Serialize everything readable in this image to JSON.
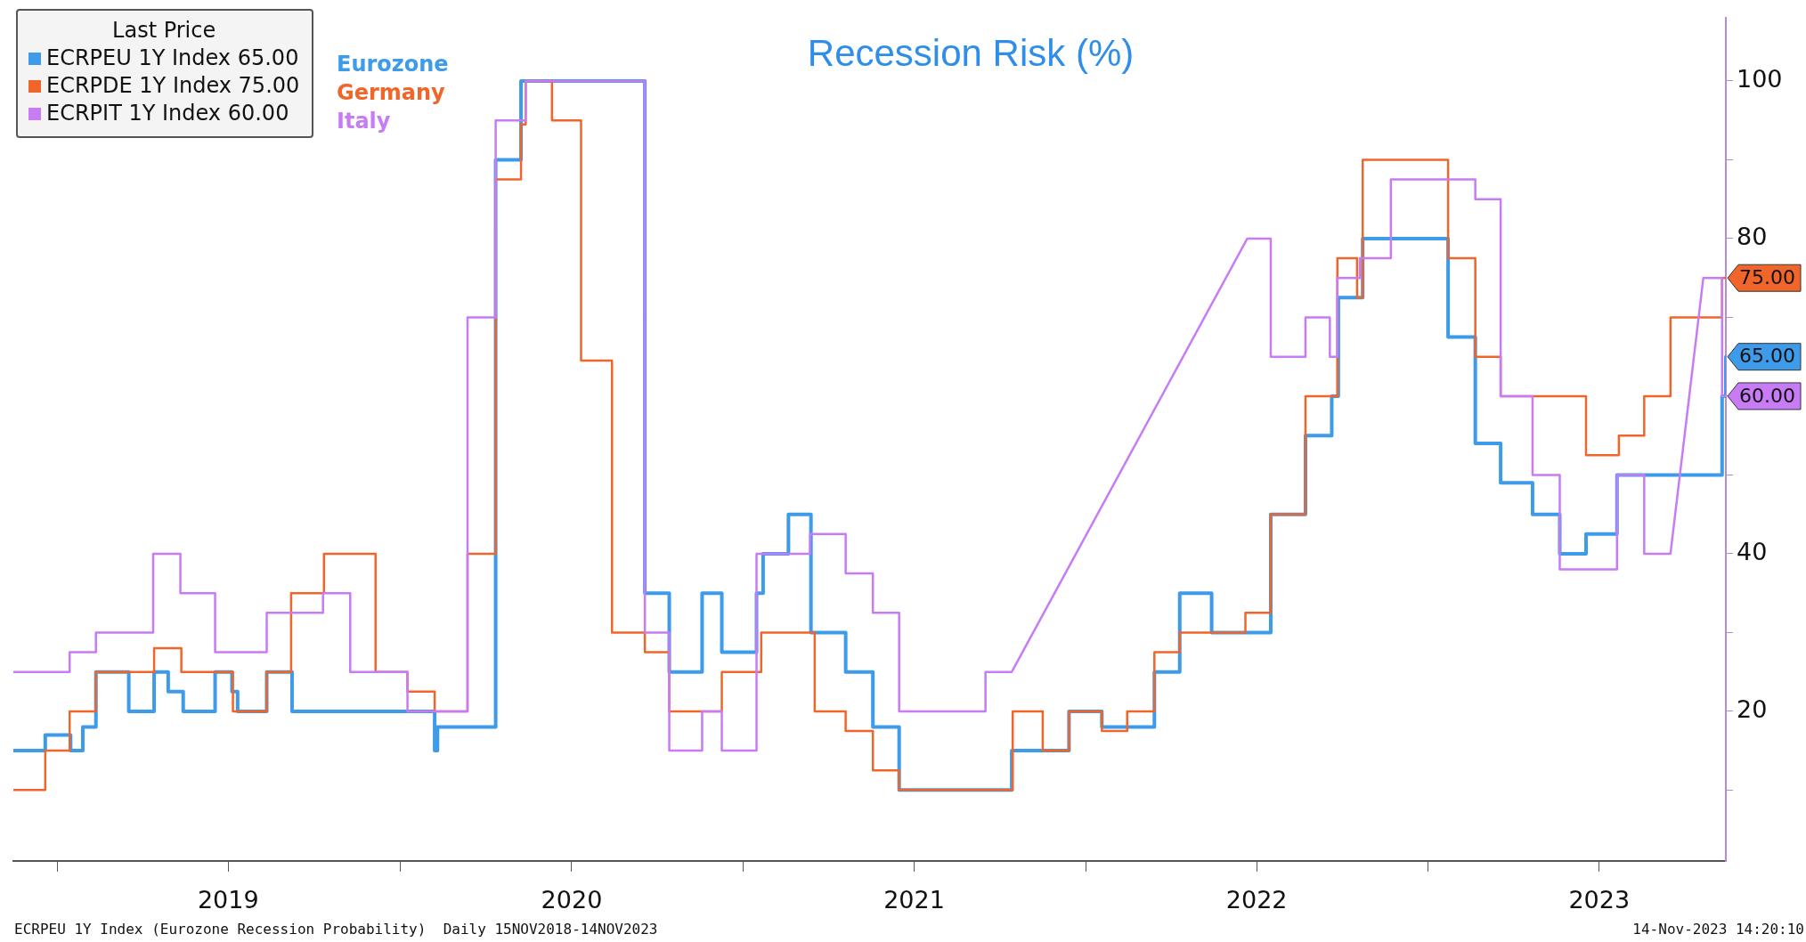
{
  "chart_data": {
    "type": "step",
    "title": "Recession Risk (%)",
    "legend_title": "Last Price",
    "legend": "top left",
    "grid": false,
    "marker": "none",
    "line_style": "solid",
    "xlim": [
      "2018-11-15",
      "2023-11-14"
    ],
    "xticks": [
      {
        "value": "2019-01-01",
        "label": null
      },
      {
        "value": "2019-07-02",
        "label": "2019"
      },
      {
        "value": "2020-01-01",
        "label": null
      },
      {
        "value": "2020-07-02",
        "label": "2020"
      },
      {
        "value": "2021-01-01",
        "label": null
      },
      {
        "value": "2021-07-02",
        "label": "2021"
      },
      {
        "value": "2022-01-01",
        "label": null
      },
      {
        "value": "2022-07-02",
        "label": "2022"
      },
      {
        "value": "2023-01-01",
        "label": null
      },
      {
        "value": "2023-07-02",
        "label": "2023"
      }
    ],
    "ylim": [
      1,
      108
    ],
    "yticks": [
      {
        "value": 10,
        "label": null
      },
      20,
      {
        "value": 30,
        "label": null
      },
      40,
      {
        "value": 50,
        "label": null
      },
      {
        "value": 60,
        "label": null
      },
      {
        "value": 70,
        "label": null
      },
      80,
      {
        "value": 90,
        "label": null
      },
      100
    ],
    "series": [
      {
        "name": "ECRPEU 1Y Index 65.00",
        "color": "#3d9be9",
        "x": [
          "2018-11-15",
          "2018-12-19",
          "2019-01-15",
          "2019-01-28",
          "2019-02-11",
          "2019-03-18",
          "2019-04-14",
          "2019-04-29",
          "2019-05-15",
          "2019-06-18",
          "2019-07-06",
          "2019-07-12",
          "2019-08-12",
          "2019-09-08",
          "2020-02-07",
          "2020-02-10",
          "2020-04-12",
          "2020-05-09",
          "2020-09-18",
          "2020-10-14",
          "2020-11-18",
          "2020-12-09",
          "2021-01-15",
          "2021-01-22",
          "2021-02-18",
          "2021-03-14",
          "2021-04-20",
          "2021-05-19",
          "2021-06-16",
          "2021-10-14",
          "2021-12-14",
          "2022-01-18",
          "2022-03-15",
          "2022-04-11",
          "2022-05-15",
          "2022-07-17",
          "2022-08-23",
          "2022-09-20",
          "2022-09-27",
          "2022-10-23",
          "2023-01-22",
          "2023-02-20",
          "2023-03-19",
          "2023-04-22",
          "2023-05-21",
          "2023-06-18",
          "2023-07-21",
          "2023-11-10",
          "2023-11-14"
        ],
        "values": [
          15,
          17,
          15,
          18,
          25,
          20,
          25,
          22.5,
          20,
          25,
          22.5,
          20,
          25,
          20,
          15,
          18,
          90,
          100,
          35,
          25,
          35,
          27.5,
          35,
          40,
          45,
          30,
          25,
          18,
          10,
          15,
          20,
          18,
          25,
          35,
          30,
          45,
          55,
          60,
          72.5,
          80,
          67.5,
          54,
          49,
          45,
          40,
          42.5,
          50,
          60,
          65
        ]
      },
      {
        "name": "ECRPDE 1Y Index 75.00",
        "color": "#f0652a",
        "x": [
          "2018-11-15",
          "2018-12-19",
          "2019-01-14",
          "2019-02-11",
          "2019-04-14",
          "2019-05-13",
          "2019-07-07",
          "2019-08-12",
          "2019-09-07",
          "2019-10-12",
          "2019-12-06",
          "2020-01-09",
          "2020-02-07",
          "2020-03-13",
          "2020-04-12",
          "2020-05-09",
          "2020-05-14",
          "2020-06-11",
          "2020-07-12",
          "2020-08-14",
          "2020-09-18",
          "2020-10-14",
          "2020-12-09",
          "2021-01-20",
          "2021-03-18",
          "2021-04-20",
          "2021-05-19",
          "2021-06-16",
          "2021-10-15",
          "2021-11-16",
          "2021-12-14",
          "2022-01-18",
          "2022-02-14",
          "2022-03-15",
          "2022-04-11",
          "2022-06-20",
          "2022-07-17",
          "2022-08-23",
          "2022-09-26",
          "2022-10-17",
          "2022-10-23",
          "2023-01-22",
          "2023-02-20",
          "2023-03-19",
          "2023-06-18",
          "2023-07-23",
          "2023-08-19",
          "2023-09-16",
          "2023-11-10",
          "2023-11-14"
        ],
        "values": [
          10,
          15,
          20,
          25,
          28,
          25,
          20,
          25,
          35,
          40,
          25,
          22.5,
          20,
          40,
          87.5,
          94.5,
          100,
          95,
          64.5,
          30,
          27.5,
          20,
          25,
          30,
          20,
          17.5,
          12.5,
          10,
          20,
          15,
          20,
          17.5,
          20,
          27.5,
          30,
          32.5,
          45,
          60,
          77.5,
          72.5,
          90,
          77.5,
          65,
          60,
          52.5,
          55,
          60,
          70,
          75,
          75
        ]
      },
      {
        "name": "ECRPIT 1Y Index 60.00",
        "color": "#c77cf5",
        "type": "line",
        "x": [
          "2018-11-15",
          "2019-01-14",
          "2019-01-14",
          "2019-02-11",
          "2019-02-11",
          "2019-04-13",
          "2019-04-13",
          "2019-05-12",
          "2019-05-12",
          "2019-06-18",
          "2019-06-18",
          "2019-08-12",
          "2019-08-12",
          "2019-10-11",
          "2019-10-11",
          "2019-11-09",
          "2019-11-09",
          "2020-01-09",
          "2020-01-09",
          "2020-03-13",
          "2020-03-13",
          "2020-04-12",
          "2020-04-12",
          "2020-05-14",
          "2020-05-14",
          "2020-09-18",
          "2020-09-18",
          "2020-10-14",
          "2020-10-14",
          "2020-11-18",
          "2020-11-18",
          "2020-12-09",
          "2020-12-09",
          "2021-01-15",
          "2021-01-15",
          "2021-03-13",
          "2021-03-13",
          "2021-04-20",
          "2021-04-20",
          "2021-05-19",
          "2021-05-19",
          "2021-06-16",
          "2021-06-16",
          "2021-09-16",
          "2021-09-16",
          "2021-10-14",
          "2022-06-22",
          "2022-07-17",
          "2022-07-17",
          "2022-08-23",
          "2022-08-23",
          "2022-09-18",
          "2022-09-18",
          "2022-09-26",
          "2022-09-26",
          "2022-10-20",
          "2022-10-20",
          "2022-11-22",
          "2022-11-22",
          "2023-02-20",
          "2023-02-20",
          "2023-03-19",
          "2023-03-19",
          "2023-04-22",
          "2023-04-22",
          "2023-05-21",
          "2023-05-21",
          "2023-07-21",
          "2023-07-21",
          "2023-08-19",
          "2023-08-19",
          "2023-09-16",
          "2023-10-21",
          "2023-11-10",
          "2023-11-10",
          "2023-11-14"
        ],
        "values": [
          25,
          25,
          27.5,
          27.5,
          30,
          30,
          40,
          40,
          35,
          35,
          27.5,
          27.5,
          32.5,
          32.5,
          35,
          35,
          25,
          25,
          20,
          20,
          70,
          70,
          95,
          95,
          100,
          100,
          30,
          30,
          15,
          15,
          20,
          20,
          15,
          15,
          40,
          40,
          42.5,
          42.5,
          37.5,
          37.5,
          32.5,
          32.5,
          20,
          20,
          25,
          25,
          80,
          80,
          65,
          65,
          70,
          70,
          65,
          65,
          75,
          75,
          77.5,
          77.5,
          87.5,
          87.5,
          85,
          85,
          60,
          60,
          50,
          50,
          38,
          38,
          50,
          50,
          40,
          40,
          75,
          75,
          60,
          60
        ]
      }
    ],
    "annotations": [
      "Eurozone",
      "Germany",
      "Italy",
      {
        "text": "75.00",
        "x": "2023-11-14",
        "y": 75
      },
      {
        "text": "65.00",
        "x": "2023-11-14",
        "y": 65
      },
      {
        "text": "60.00",
        "x": "2023-11-14",
        "y": 60
      },
      "ECRPEU 1Y Index (Eurozone Recession Probability)  Daily 15NOV2018-14NOV2023",
      "14-Nov-2023 14:20:10"
    ]
  }
}
